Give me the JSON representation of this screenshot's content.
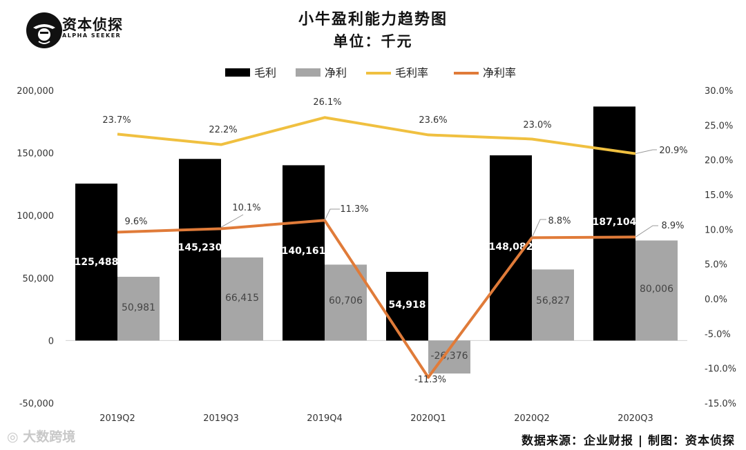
{
  "brand": {
    "name": "资本侦探",
    "sub": "ALPHA SEEKER"
  },
  "title": "小牛盈利能力趋势图",
  "unit": "单位：千元",
  "source": "数据来源：企业财报 | 制图：资本侦探",
  "watermark": "大数跨境",
  "colors": {
    "gross": "#000000",
    "net": "#a6a6a6",
    "gross_margin": "#f0c040",
    "net_margin": "#e07b39"
  },
  "chart_data": {
    "type": "bar",
    "categories": [
      "2019Q2",
      "2019Q3",
      "2019Q4",
      "2020Q1",
      "2020Q2",
      "2020Q3"
    ],
    "series": [
      {
        "name": "毛利",
        "type": "bar",
        "axis": "left",
        "values": [
          125488,
          145230,
          140161,
          54918,
          148082,
          187104
        ],
        "labels": [
          "125,488",
          "145,230",
          "140,161",
          "54,918",
          "148,082",
          "187,104"
        ]
      },
      {
        "name": "净利",
        "type": "bar",
        "axis": "left",
        "values": [
          50981,
          66415,
          60706,
          -26376,
          56827,
          80006
        ],
        "labels": [
          "50,981",
          "66,415",
          "60,706",
          "-26,376",
          "56,827",
          "80,006"
        ]
      },
      {
        "name": "毛利率",
        "type": "line",
        "axis": "right",
        "values": [
          23.7,
          22.2,
          26.1,
          23.6,
          23.0,
          20.9
        ],
        "labels": [
          "23.7%",
          "22.2%",
          "26.1%",
          "23.6%",
          "23.0%",
          "20.9%"
        ]
      },
      {
        "name": "净利率",
        "type": "line",
        "axis": "right",
        "values": [
          9.6,
          10.1,
          11.3,
          -11.3,
          8.8,
          8.9
        ],
        "labels": [
          "9.6%",
          "10.1%",
          "11.3%",
          "-11.3%",
          "8.8%",
          "8.9%"
        ]
      }
    ],
    "y_left": {
      "min": -50000,
      "max": 200000,
      "ticks": [
        "200,000",
        "150,000",
        "100,000",
        "50,000",
        "0",
        "-50,000"
      ],
      "tick_values": [
        200000,
        150000,
        100000,
        50000,
        0,
        -50000
      ]
    },
    "y_right": {
      "min": -15,
      "max": 30,
      "ticks": [
        "30.0%",
        "25.0%",
        "20.0%",
        "15.0%",
        "10.0%",
        "5.0%",
        "0.0%",
        "-5.0%",
        "-10.0%",
        "-15.0%"
      ],
      "tick_values": [
        30,
        25,
        20,
        15,
        10,
        5,
        0,
        -5,
        -10,
        -15
      ]
    },
    "legend_position": "top-center"
  }
}
